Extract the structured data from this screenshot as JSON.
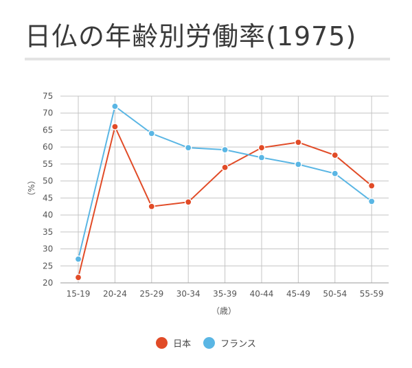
{
  "chart_data": {
    "type": "line",
    "title": "日仏の年齢別労働率(1975)",
    "xlabel": "（歳）",
    "ylabel": "（%）",
    "categories": [
      "15-19",
      "20-24",
      "25-29",
      "30-34",
      "35-39",
      "40-44",
      "45-49",
      "50-54",
      "55-59"
    ],
    "ylim": [
      20,
      75
    ],
    "yticks": [
      20,
      25,
      30,
      35,
      40,
      45,
      50,
      55,
      60,
      65,
      70,
      75
    ],
    "grid": true,
    "legend_position": "bottom",
    "series": [
      {
        "name": "日本",
        "color": "#e14b27",
        "values": [
          21.6,
          66,
          42.5,
          43.8,
          54,
          59.8,
          61.4,
          57.6,
          48.6
        ]
      },
      {
        "name": "フランス",
        "color": "#5ab6e4",
        "values": [
          27,
          72,
          64,
          59.8,
          59.2,
          56.9,
          54.9,
          52.2,
          44
        ]
      }
    ]
  }
}
